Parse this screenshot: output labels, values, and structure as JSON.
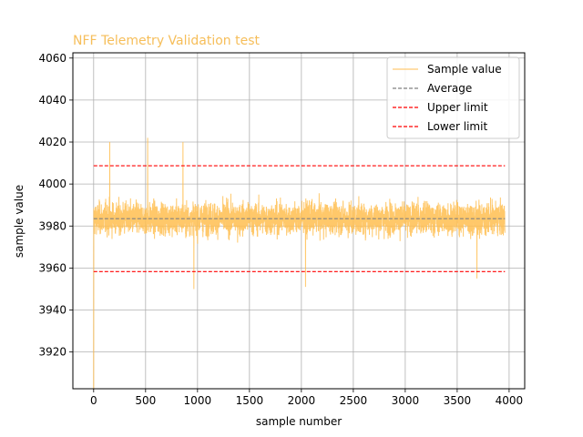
{
  "chart_data": {
    "type": "line",
    "title": "NFF Telemetry Validation test",
    "title_color": "#f6be5a",
    "xlabel": "sample number",
    "ylabel": "sample value",
    "xlim": [
      -200,
      4150
    ],
    "ylim": [
      3902.5,
      4062.5
    ],
    "xticks": [
      0,
      500,
      1000,
      1500,
      2000,
      2500,
      3000,
      3500,
      4000
    ],
    "yticks": [
      3920,
      3940,
      3960,
      3980,
      4000,
      4020,
      4040,
      4060
    ],
    "grid": true,
    "legend_position": "upper right",
    "series": [
      {
        "name": "Sample value",
        "color": "#ffbe50",
        "style": "solid",
        "n_samples": 3960,
        "x_range": [
          0,
          3960
        ],
        "first_value": 3902,
        "approx_mean": 3983.5,
        "approx_spread_range": [
          3950,
          4022
        ],
        "notable_peaks": [
          {
            "x": 155,
            "y": 4020
          },
          {
            "x": 520,
            "y": 4022
          },
          {
            "x": 860,
            "y": 4020
          },
          {
            "x": 965,
            "y": 3950
          },
          {
            "x": 2040,
            "y": 3951
          },
          {
            "x": 3690,
            "y": 3955
          }
        ]
      },
      {
        "name": "Average",
        "color": "#808080",
        "style": "dashed",
        "x_range": [
          0,
          3960
        ],
        "value": 3983.5
      },
      {
        "name": "Upper limit",
        "color": "#ff0000",
        "style": "dashed",
        "x_range": [
          0,
          3960
        ],
        "value": 4008.7
      },
      {
        "name": "Lower limit",
        "color": "#ff0000",
        "style": "dashed",
        "x_range": [
          0,
          3960
        ],
        "value": 3958.3
      }
    ]
  }
}
